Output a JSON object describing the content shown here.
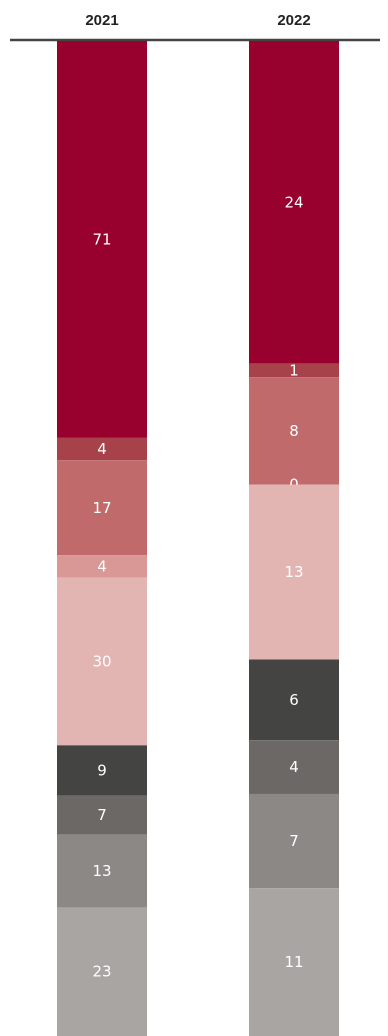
{
  "chart_data": {
    "type": "bar",
    "stacked": true,
    "categories": [
      "2021",
      "2022"
    ],
    "segment_colors": [
      "#98002e",
      "#a8424a",
      "#c06a6c",
      "#d99896",
      "#e3b5b2",
      "#444442",
      "#6c6866",
      "#8c8886",
      "#a9a5a3"
    ],
    "label_colors": [
      "#ffffff",
      "#ffffff",
      "#ffffff",
      "#ffffff",
      "#ffffff",
      "#ffffff",
      "#ffffff",
      "#ffffff",
      "#ffffff"
    ],
    "stacks": [
      {
        "category": "2021",
        "values": [
          71,
          4,
          17,
          4,
          30,
          9,
          7,
          13,
          23
        ]
      },
      {
        "category": "2022",
        "values": [
          24,
          1,
          8,
          0,
          13,
          6,
          4,
          7,
          11
        ]
      }
    ],
    "baseline_color": "#444444",
    "grid": false,
    "legend": "none"
  }
}
